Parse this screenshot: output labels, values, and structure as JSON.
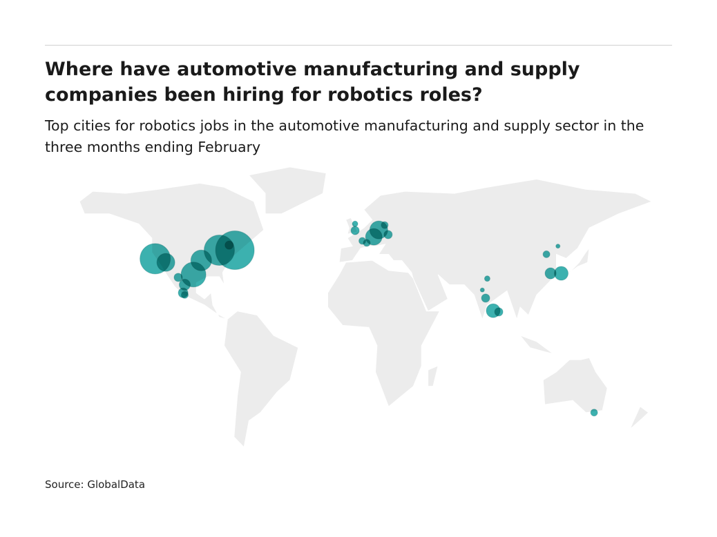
{
  "title": "Where have automotive manufacturing and supply companies been hiring for robotics roles?",
  "subtitle": "Top cities for robotics jobs in the automotive manufacturing and supply sector in the three months ending February",
  "source": "Source: GlobalData",
  "colors": {
    "bubble": "#1aa3a1",
    "land": "#ececec",
    "border": "#9a9a9a"
  },
  "chart_data": {
    "type": "bubble-map",
    "points": [
      {
        "lon": -122,
        "lat": 37.8,
        "size": 22
      },
      {
        "lon": -115.5,
        "lat": 36,
        "size": 13
      },
      {
        "lon": -94,
        "lat": 37,
        "size": 15
      },
      {
        "lon": -98.7,
        "lat": 30,
        "size": 18
      },
      {
        "lon": -83,
        "lat": 42,
        "size": 22
      },
      {
        "lon": -73.5,
        "lat": 42,
        "size": 28
      },
      {
        "lon": -77,
        "lat": 44.5,
        "size": 6
      },
      {
        "lon": -108,
        "lat": 28.6,
        "size": 6
      },
      {
        "lon": -104,
        "lat": 25,
        "size": 8
      },
      {
        "lon": -105,
        "lat": 21,
        "size": 7
      },
      {
        "lon": -104,
        "lat": 20,
        "size": 5
      },
      {
        "lon": -0.4,
        "lat": 51.7,
        "size": 6
      },
      {
        "lon": -0.4,
        "lat": 55,
        "size": 4
      },
      {
        "lon": 14,
        "lat": 52,
        "size": 13
      },
      {
        "lon": 11,
        "lat": 48.6,
        "size": 12
      },
      {
        "lon": 4,
        "lat": 46.6,
        "size": 5
      },
      {
        "lon": 6.7,
        "lat": 45.6,
        "size": 5
      },
      {
        "lon": 17.6,
        "lat": 54.4,
        "size": 5
      },
      {
        "lon": 19.7,
        "lat": 49.7,
        "size": 6
      },
      {
        "lon": 116,
        "lat": 40,
        "size": 5
      },
      {
        "lon": 123,
        "lat": 44,
        "size": 3
      },
      {
        "lon": 118.5,
        "lat": 30.6,
        "size": 8
      },
      {
        "lon": 125,
        "lat": 30.6,
        "size": 10
      },
      {
        "lon": 80,
        "lat": 28,
        "size": 4
      },
      {
        "lon": 77,
        "lat": 22.4,
        "size": 3
      },
      {
        "lon": 79,
        "lat": 18.4,
        "size": 6
      },
      {
        "lon": 83.6,
        "lat": 12.2,
        "size": 10
      },
      {
        "lon": 87,
        "lat": 11.6,
        "size": 6
      },
      {
        "lon": 145,
        "lat": -38,
        "size": 5
      }
    ]
  }
}
